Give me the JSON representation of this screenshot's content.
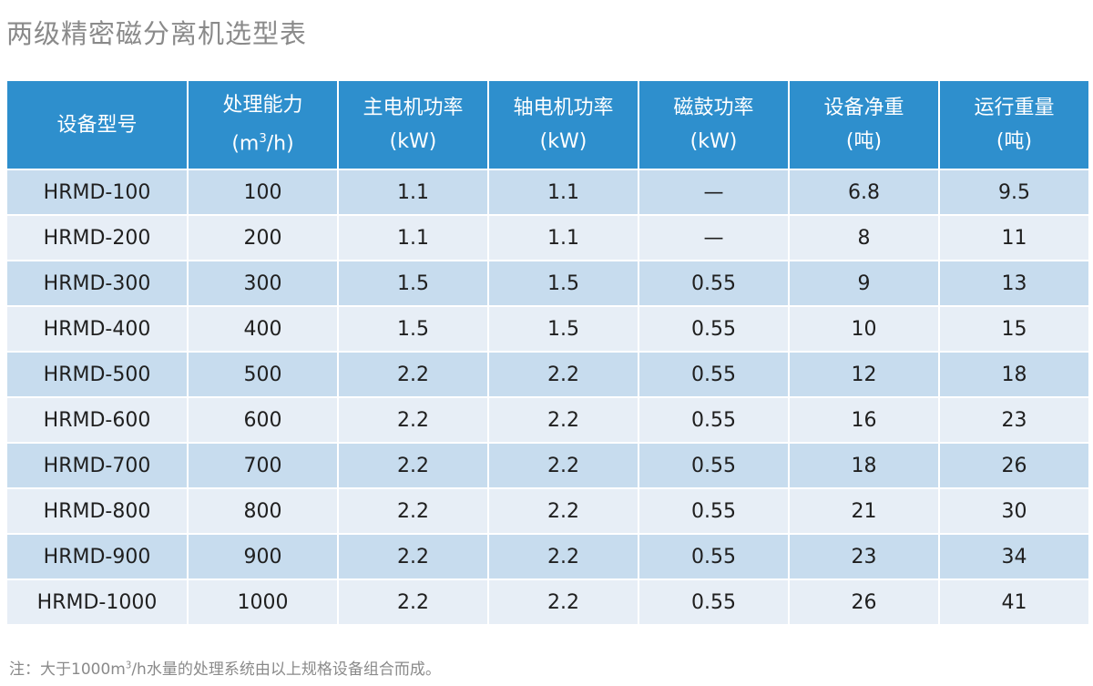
{
  "title": "两级精密磁分离机选型表",
  "table": {
    "headers": [
      {
        "line1": "设备型号",
        "line2": ""
      },
      {
        "line1": "处理能力",
        "line2_pre": "(m",
        "line2_sup": "3",
        "line2_post": "/h)"
      },
      {
        "line1": "主电机功率",
        "line2": "(kW)"
      },
      {
        "line1": "轴电机功率",
        "line2": "(kW)"
      },
      {
        "line1": "磁鼓功率",
        "line2": "(kW)"
      },
      {
        "line1": "设备净重",
        "line2": "(吨)"
      },
      {
        "line1": "运行重量",
        "line2": "(吨)"
      }
    ],
    "rows": [
      [
        "HRMD-100",
        "100",
        "1.1",
        "1.1",
        "—",
        "6.8",
        "9.5"
      ],
      [
        "HRMD-200",
        "200",
        "1.1",
        "1.1",
        "—",
        "8",
        "11"
      ],
      [
        "HRMD-300",
        "300",
        "1.5",
        "1.5",
        "0.55",
        "9",
        "13"
      ],
      [
        "HRMD-400",
        "400",
        "1.5",
        "1.5",
        "0.55",
        "10",
        "15"
      ],
      [
        "HRMD-500",
        "500",
        "2.2",
        "2.2",
        "0.55",
        "12",
        "18"
      ],
      [
        "HRMD-600",
        "600",
        "2.2",
        "2.2",
        "0.55",
        "16",
        "23"
      ],
      [
        "HRMD-700",
        "700",
        "2.2",
        "2.2",
        "0.55",
        "18",
        "26"
      ],
      [
        "HRMD-800",
        "800",
        "2.2",
        "2.2",
        "0.55",
        "21",
        "30"
      ],
      [
        "HRMD-900",
        "900",
        "2.2",
        "2.2",
        "0.55",
        "23",
        "34"
      ],
      [
        "HRMD-1000",
        "1000",
        "2.2",
        "2.2",
        "0.55",
        "26",
        "41"
      ]
    ]
  },
  "note": {
    "pre": "注：大于1000m",
    "sup": "3",
    "post": "/h水量的处理系统由以上规格设备组合而成。"
  },
  "colors": {
    "header_bg": "#2e8fcd",
    "row_odd": "#c7dcee",
    "row_even": "#e7eef6",
    "title_text": "#8a8a8a"
  }
}
